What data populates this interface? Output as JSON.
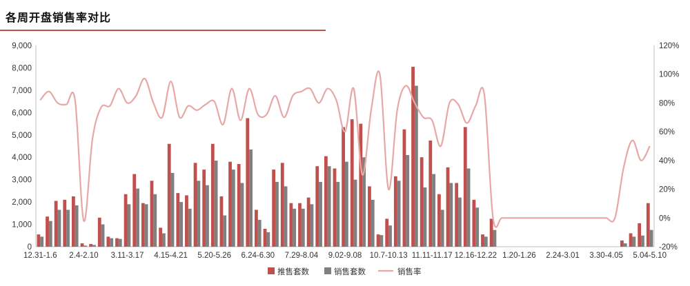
{
  "header": {
    "title": "各周开盘销售率对比"
  },
  "colors": {
    "push": "#c0504d",
    "sold": "#808080",
    "rate": "#e6a7a5",
    "title_rule": "#c0504d"
  },
  "chart_data": {
    "type": "bar+line",
    "left_axis": {
      "min": 0,
      "max": 9000,
      "ticks": [
        {
          "v": 0,
          "label": "0"
        },
        {
          "v": 1000,
          "label": "1,000"
        },
        {
          "v": 2000,
          "label": "2,000"
        },
        {
          "v": 3000,
          "label": "3,000"
        },
        {
          "v": 4000,
          "label": "4,000"
        },
        {
          "v": 5000,
          "label": "5,000"
        },
        {
          "v": 6000,
          "label": "6,000"
        },
        {
          "v": 7000,
          "label": "7,000"
        },
        {
          "v": 8000,
          "label": "8,000"
        },
        {
          "v": 9000,
          "label": "9,000"
        }
      ]
    },
    "right_axis": {
      "min": -20,
      "max": 120,
      "ticks": [
        {
          "v": -20,
          "label": "-20%"
        },
        {
          "v": 0,
          "label": "0%"
        },
        {
          "v": 20,
          "label": "20%"
        },
        {
          "v": 40,
          "label": "40%"
        },
        {
          "v": 60,
          "label": "60%"
        },
        {
          "v": 80,
          "label": "80%"
        },
        {
          "v": 100,
          "label": "100%"
        },
        {
          "v": 120,
          "label": "120%"
        }
      ]
    },
    "x_labels": [
      {
        "i": 0,
        "label": "12.31-1.6"
      },
      {
        "i": 5,
        "label": "2.4-2.10"
      },
      {
        "i": 10,
        "label": "3.11-3.17"
      },
      {
        "i": 15,
        "label": "4.15-4.21"
      },
      {
        "i": 20,
        "label": "5.20-5.26"
      },
      {
        "i": 25,
        "label": "6.24-6.30"
      },
      {
        "i": 30,
        "label": "7.29-8.04"
      },
      {
        "i": 35,
        "label": "9.02-9.08"
      },
      {
        "i": 40,
        "label": "10.7-10.13"
      },
      {
        "i": 45,
        "label": "11.11-11.17"
      },
      {
        "i": 50,
        "label": "12.16-12.22"
      },
      {
        "i": 55,
        "label": "1.20-1.26"
      },
      {
        "i": 60,
        "label": "2.24-3.01"
      },
      {
        "i": 65,
        "label": "3.30-4.05"
      },
      {
        "i": 70,
        "label": "5.04-5.10"
      }
    ],
    "series": [
      {
        "name": "推售套数",
        "values": [
          550,
          1350,
          2050,
          2100,
          2250,
          150,
          120,
          1300,
          450,
          380,
          2350,
          3250,
          1950,
          2950,
          850,
          4600,
          2400,
          2300,
          3750,
          3450,
          4600,
          2250,
          3800,
          3700,
          5750,
          1650,
          800,
          3450,
          3750,
          1950,
          1950,
          2200,
          3600,
          4050,
          3500,
          5350,
          5700,
          5500,
          2700,
          550,
          1250,
          3150,
          5250,
          8050,
          4000,
          4750,
          2350,
          3550,
          2850,
          5350,
          2100,
          550,
          1250,
          0,
          0,
          0,
          0,
          0,
          0,
          0,
          0,
          0,
          0,
          0,
          0,
          0,
          0,
          280,
          600,
          1050,
          1950
        ]
      },
      {
        "name": "销售套数",
        "values": [
          450,
          1150,
          1650,
          1650,
          1850,
          50,
          80,
          1000,
          380,
          350,
          1900,
          2600,
          1900,
          2350,
          600,
          3300,
          2000,
          1700,
          2950,
          2750,
          3850,
          1400,
          3450,
          2850,
          4350,
          1200,
          650,
          2900,
          2700,
          1700,
          1700,
          1900,
          2900,
          3600,
          2900,
          3800,
          3000,
          4000,
          2100,
          520,
          950,
          2950,
          4100,
          7200,
          2650,
          3250,
          1650,
          2850,
          2200,
          3500,
          1750,
          450,
          750,
          0,
          0,
          0,
          0,
          0,
          0,
          0,
          0,
          0,
          0,
          0,
          0,
          0,
          0,
          150,
          450,
          500,
          750
        ]
      },
      {
        "name": "销售率",
        "values": [
          82,
          88,
          80,
          79,
          82,
          -2,
          55,
          77,
          78,
          90,
          80,
          85,
          97,
          80,
          70,
          95,
          70,
          78,
          75,
          79,
          81,
          65,
          90,
          68,
          90,
          72,
          72,
          85,
          70,
          85,
          88,
          90,
          80,
          90,
          82,
          60,
          90,
          30,
          75,
          100,
          20,
          75,
          92,
          80,
          70,
          68,
          50,
          80,
          79,
          66,
          78,
          86,
          0,
          0,
          0,
          0,
          0,
          0,
          0,
          0,
          0,
          0,
          0,
          0,
          0,
          0,
          0,
          35,
          54,
          40,
          50
        ]
      }
    ],
    "legend": {
      "position": "bottom",
      "items": [
        {
          "label": "推售套数",
          "kind": "bar"
        },
        {
          "label": "销售套数",
          "kind": "bar"
        },
        {
          "label": "销售率",
          "kind": "line"
        }
      ]
    }
  }
}
